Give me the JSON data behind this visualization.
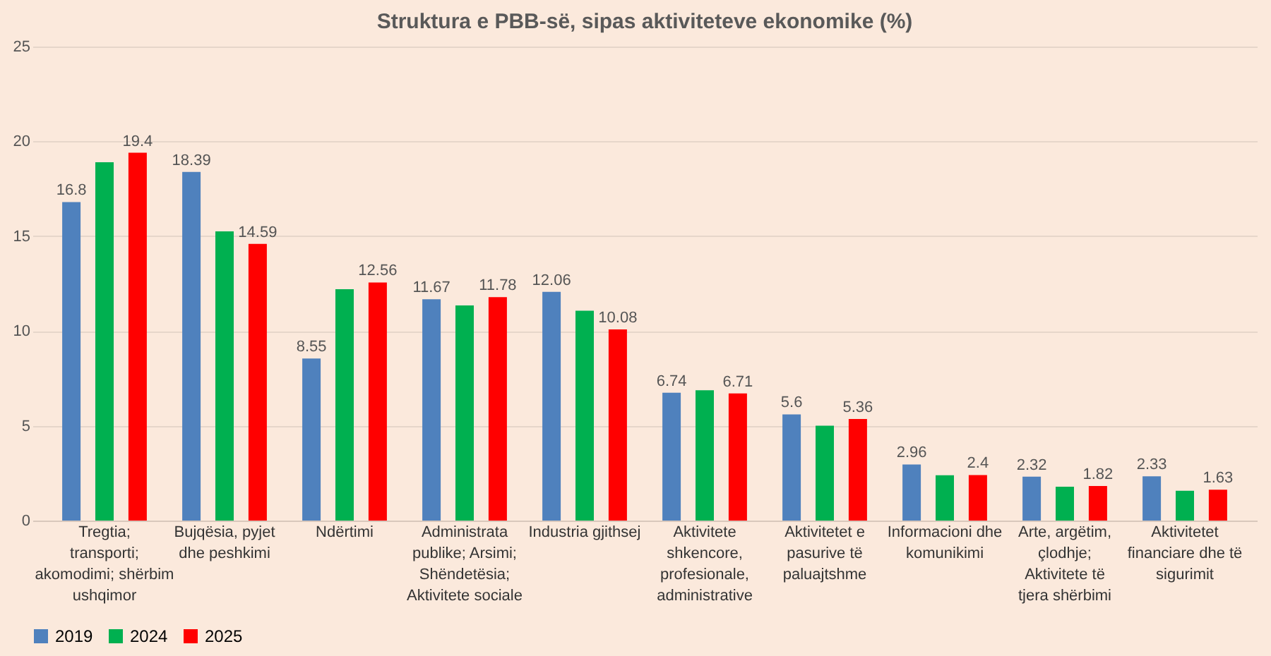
{
  "chart_data": {
    "type": "bar",
    "title": "Struktura e PBB-së, sipas aktiviteteve ekonomike (%)",
    "categories": [
      "Tregtia; transporti; akomodimi; shërbim ushqimor",
      "Bujqësia, pyjet dhe peshkimi",
      "Ndërtimi",
      "Administrata publike; Arsimi; Shëndetësia; Aktivitete sociale",
      "Industria gjithsej",
      "Aktivitete shkencore, profesionale, administrative",
      "Aktivitetet e pasurive të paluajtshme",
      "Informacioni dhe komunikimi",
      "Arte, argëtim, çlodhje; Aktivitete të tjera shërbimi",
      "Aktivitetet financiare dhe të sigurimit"
    ],
    "series": [
      {
        "name": "2019",
        "color": "#4f81bd",
        "values": [
          16.8,
          18.39,
          8.55,
          11.67,
          12.06,
          6.74,
          5.6,
          2.96,
          2.32,
          2.33
        ],
        "value_labels": [
          "16.8",
          "18.39",
          "8.55",
          "11.67",
          "12.06",
          "6.74",
          "5.6",
          "2.96",
          "2.32",
          "2.33"
        ]
      },
      {
        "name": "2024",
        "color": "#00b050",
        "values": [
          18.9,
          15.25,
          12.2,
          11.35,
          11.07,
          6.87,
          5.0,
          2.39,
          1.79,
          1.57
        ]
      },
      {
        "name": "2025",
        "color": "#ff0000",
        "values": [
          19.4,
          14.59,
          12.56,
          11.78,
          10.08,
          6.71,
          5.36,
          2.4,
          1.82,
          1.63
        ],
        "value_labels": [
          "19.4",
          "14.59",
          "12.56",
          "11.78",
          "10.08",
          "6.71",
          "5.36",
          "2.4",
          "1.82",
          "1.63"
        ]
      }
    ],
    "ylim": [
      0,
      25
    ],
    "yticks": [
      0,
      5,
      10,
      15,
      20,
      25
    ],
    "grid": "y",
    "legend": "bottom"
  }
}
